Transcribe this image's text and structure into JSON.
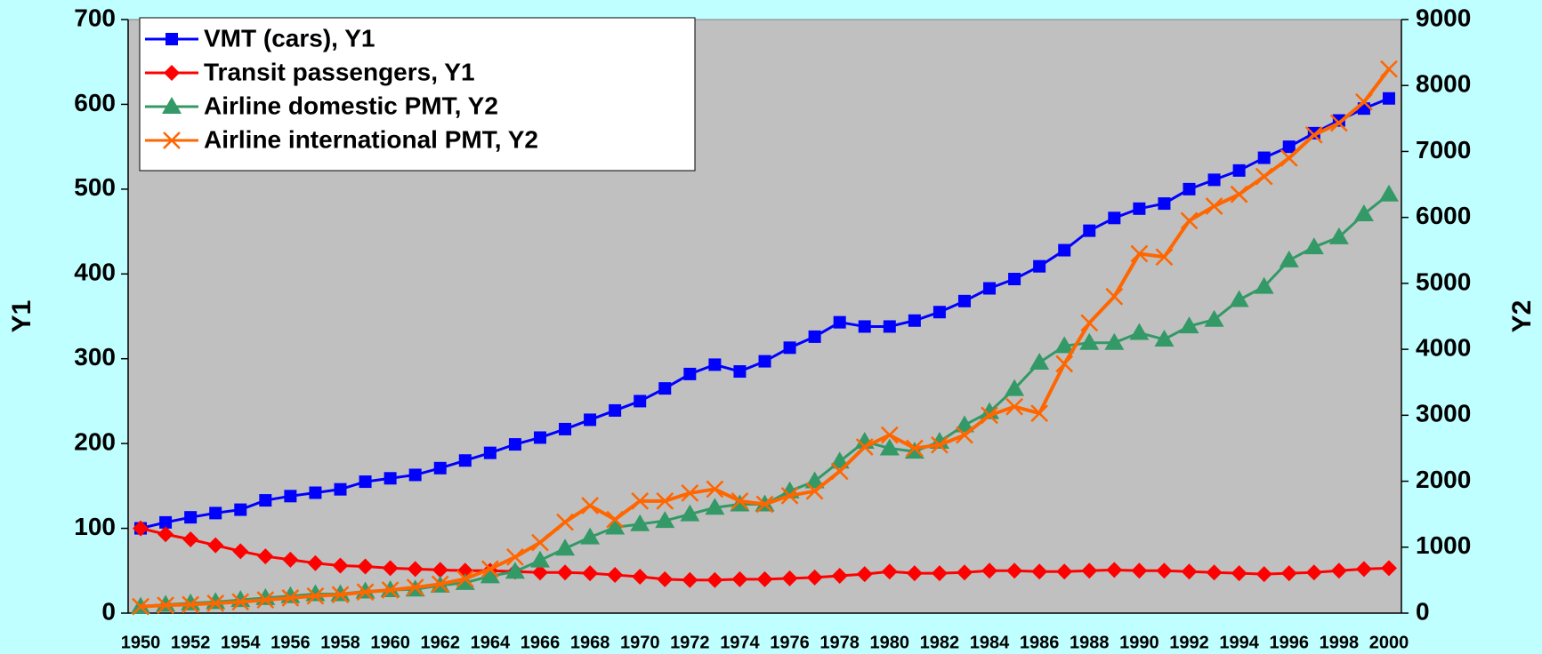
{
  "chart_data": {
    "type": "line",
    "categories": [
      "1950",
      null,
      "1952",
      null,
      "1954",
      null,
      "1956",
      null,
      "1958",
      null,
      "1960",
      null,
      "1962",
      null,
      "1964",
      null,
      "1966",
      null,
      "1968",
      null,
      "1970",
      null,
      "1972",
      null,
      "1974",
      null,
      "1976",
      null,
      "1978",
      null,
      "1980",
      null,
      "1982",
      null,
      "1984",
      null,
      "1986",
      null,
      "1988",
      null,
      "1990",
      null,
      "1992",
      null,
      "1994",
      null,
      "1996",
      null,
      "1998",
      null,
      "2000"
    ],
    "ylabel": "Y1",
    "y2label": "Y2",
    "ylim": [
      0,
      700
    ],
    "yticks": [
      0,
      100,
      200,
      300,
      400,
      500,
      600,
      700
    ],
    "y2lim": [
      0,
      9000
    ],
    "y2ticks": [
      0,
      1000,
      2000,
      3000,
      4000,
      5000,
      6000,
      7000,
      8000,
      9000
    ],
    "grid": false,
    "legend": "upper left",
    "series": [
      {
        "name": "VMT (cars), Y1",
        "color": "#0000ff",
        "marker": "square",
        "axis": "y",
        "values": [
          100,
          107,
          113,
          118,
          122,
          133,
          138,
          142,
          146,
          155,
          159,
          163,
          171,
          180,
          189,
          199,
          207,
          217,
          228,
          239,
          250,
          265,
          282,
          293,
          285,
          297,
          313,
          326,
          343,
          338,
          338,
          345,
          355,
          368,
          383,
          394,
          409,
          428,
          451,
          466,
          477,
          483,
          500,
          511,
          522,
          537,
          550,
          566,
          581,
          595,
          607
        ]
      },
      {
        "name": "Transit passengers, Y1",
        "color": "#ff0000",
        "marker": "diamond",
        "axis": "y",
        "values": [
          100,
          93,
          87,
          80,
          73,
          67,
          63,
          59,
          56,
          55,
          53,
          52,
          51,
          50,
          50,
          49,
          48,
          48,
          47,
          45,
          43,
          40,
          39,
          39,
          40,
          40,
          41,
          42,
          44,
          46,
          49,
          47,
          47,
          48,
          50,
          50,
          49,
          49,
          50,
          51,
          50,
          50,
          49,
          48,
          47,
          46,
          47,
          48,
          50,
          52,
          53
        ]
      },
      {
        "name": "Airline domestic PMT, Y2",
        "color": "#339966",
        "marker": "triangle",
        "axis": "y2",
        "values": [
          100,
          130,
          150,
          170,
          200,
          230,
          260,
          290,
          290,
          330,
          350,
          360,
          420,
          460,
          560,
          630,
          800,
          980,
          1150,
          1300,
          1350,
          1400,
          1500,
          1600,
          1650,
          1650,
          1850,
          2000,
          2300,
          2600,
          2500,
          2450,
          2600,
          2850,
          3050,
          3400,
          3800,
          4050,
          4100,
          4100,
          4250,
          4150,
          4350,
          4450,
          4750,
          4950,
          5350,
          5550,
          5700,
          6050,
          6350
        ]
      },
      {
        "name": "Airline international PMT, Y2",
        "color": "#ff6600",
        "marker": "x",
        "axis": "y2",
        "values": [
          100,
          120,
          130,
          150,
          170,
          200,
          230,
          260,
          280,
          320,
          350,
          390,
          440,
          520,
          670,
          850,
          1070,
          1380,
          1630,
          1420,
          1700,
          1700,
          1820,
          1880,
          1700,
          1650,
          1780,
          1850,
          2150,
          2520,
          2700,
          2500,
          2550,
          2700,
          3000,
          3130,
          3030,
          3780,
          4400,
          4800,
          5450,
          5400,
          5950,
          6170,
          6350,
          6620,
          6900,
          7250,
          7430,
          7750,
          8250
        ]
      }
    ]
  }
}
